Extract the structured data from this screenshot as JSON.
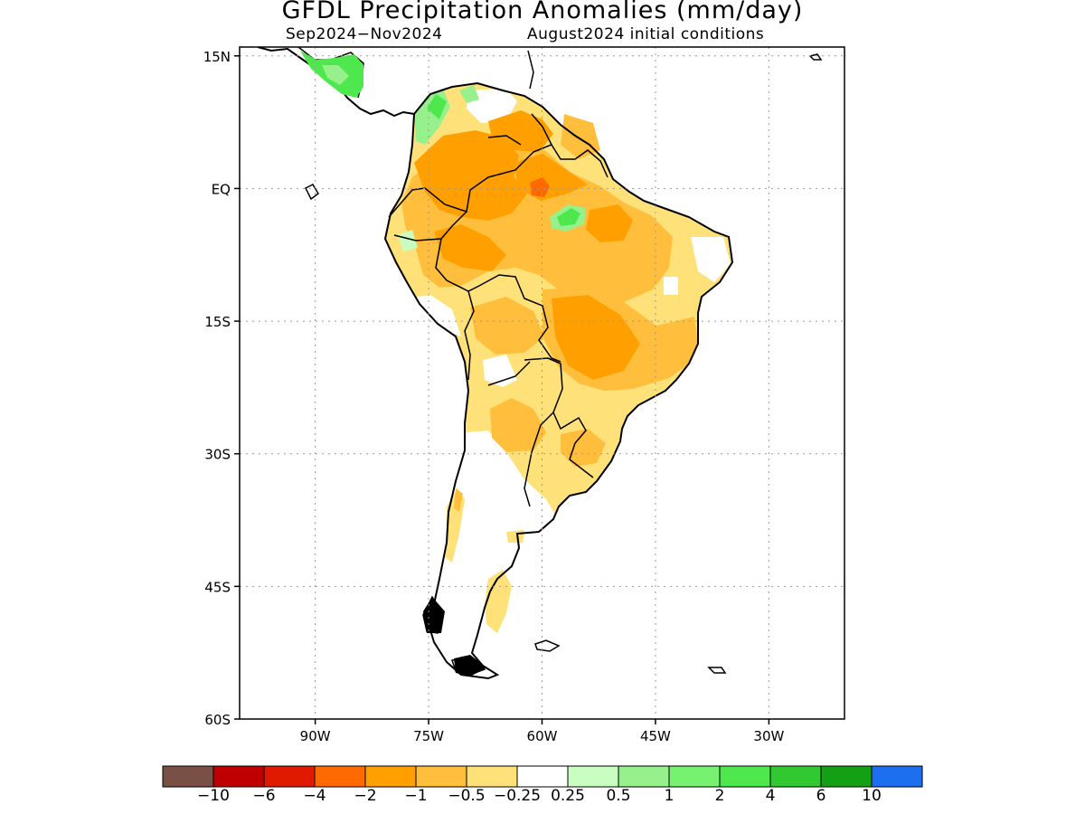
{
  "title": "GFDL Precipitation Anomalies (mm/day)",
  "subtitle_left": "Sep2024−Nov2024",
  "subtitle_right": "August2024 initial conditions",
  "map": {
    "lat_labels": [
      "15N",
      "EQ",
      "15S",
      "30S",
      "45S",
      "60S"
    ],
    "lon_labels": [
      "90W",
      "75W",
      "60W",
      "45W",
      "30W"
    ],
    "lat_values": [
      15,
      0,
      -15,
      -30,
      -45,
      -60
    ],
    "lon_values": [
      -90,
      -75,
      -60,
      -45,
      -30
    ],
    "extent": {
      "lon_min": -100,
      "lon_max": -20,
      "lat_min": -60,
      "lat_max": 16
    }
  },
  "colorbar": {
    "colors": [
      "#7a4f45",
      "#bf0000",
      "#e01a00",
      "#ff6a00",
      "#ffa000",
      "#ffbe3c",
      "#ffe17a",
      "#ffffff",
      "#c8ffc0",
      "#96f08c",
      "#78f070",
      "#4ee84e",
      "#32c832",
      "#14a014",
      "#1e6ef0"
    ],
    "labels": [
      "−10",
      "−6",
      "−4",
      "−2",
      "−1",
      "−0.5",
      "−0.25",
      "0.25",
      "0.5",
      "1",
      "2",
      "4",
      "6",
      "10"
    ]
  }
}
